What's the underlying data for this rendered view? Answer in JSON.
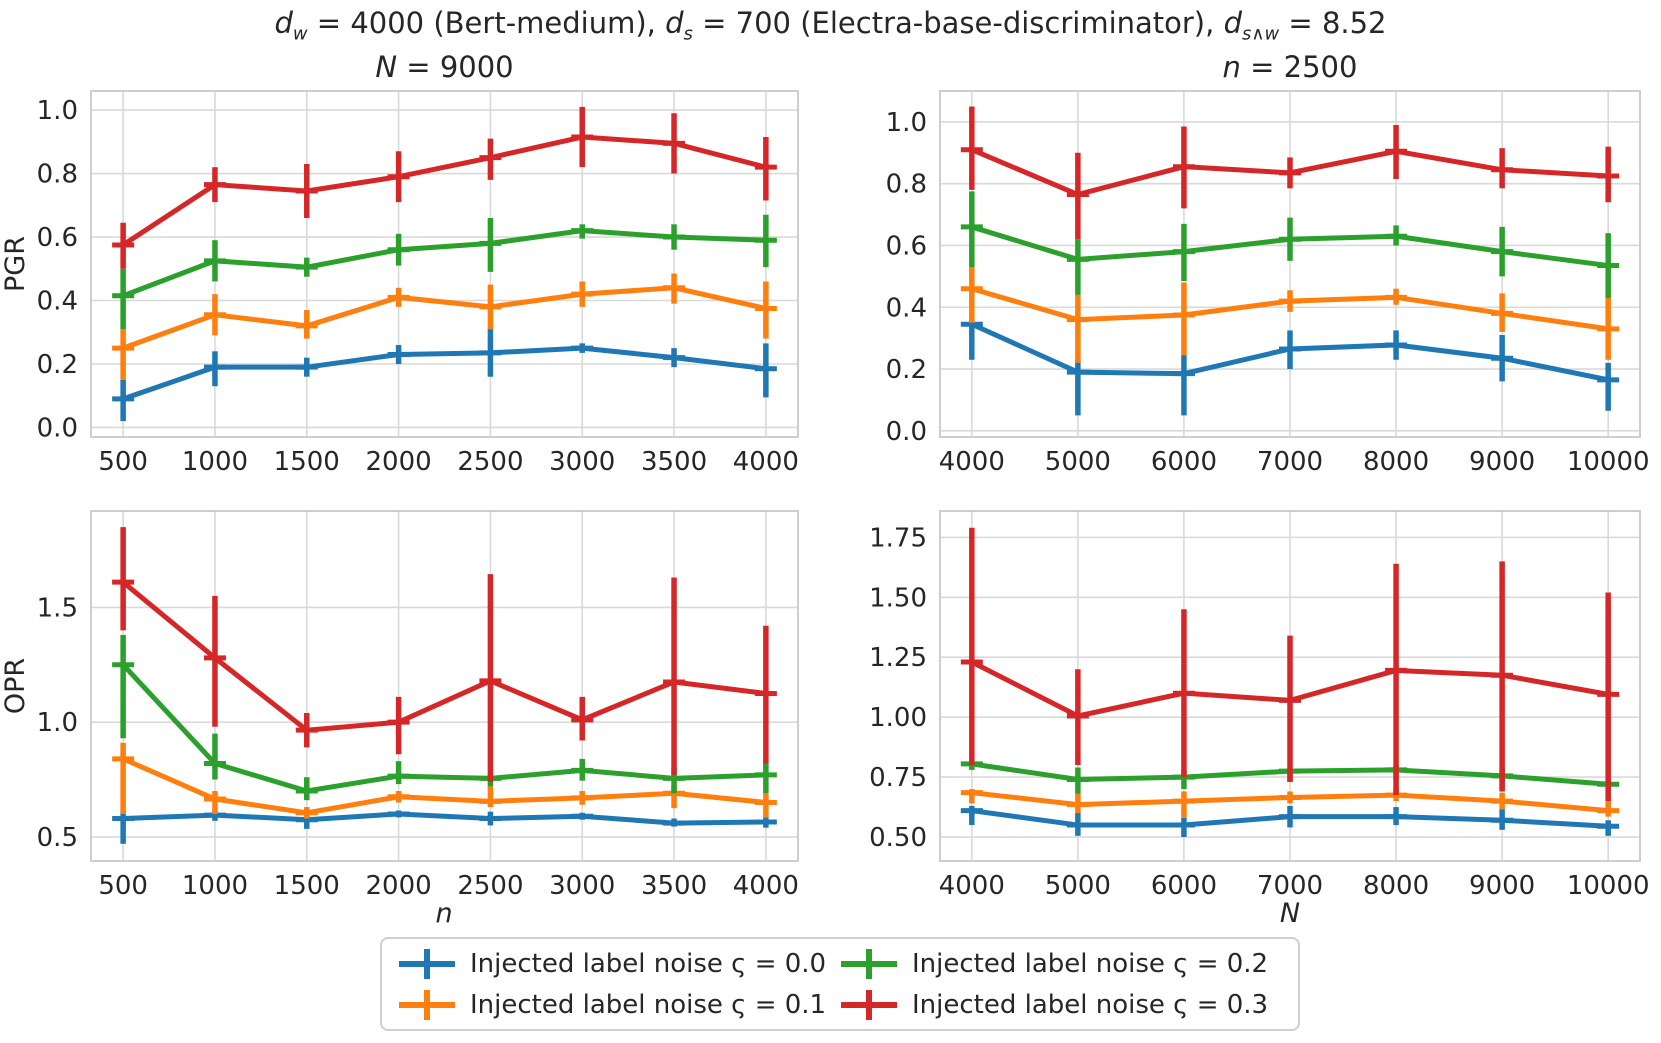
{
  "title": {
    "segments": [
      {
        "t": "d",
        "i": true
      },
      {
        "t": "w",
        "i": true,
        "sub": true
      },
      {
        "t": " = 4000 (Bert-medium), "
      },
      {
        "t": "d",
        "i": true
      },
      {
        "t": "s",
        "i": true,
        "sub": true
      },
      {
        "t": " = 700 (Electra-base-discriminator), "
      },
      {
        "t": "d",
        "i": true
      },
      {
        "t": "s∧w",
        "i": true,
        "sub": true
      },
      {
        "t": " = 8.52"
      }
    ]
  },
  "colors": {
    "blue": "#1f77b4",
    "orange": "#ff7f0e",
    "green": "#2ca02c",
    "red": "#d62728",
    "grid": "#d9d9d9",
    "spine": "#c9c9c9",
    "text": "#262626"
  },
  "legend": {
    "items": [
      {
        "color": "blue",
        "label": "Injected label noise ς = 0.0"
      },
      {
        "color": "orange",
        "label": "Injected label noise ς = 0.1"
      },
      {
        "color": "green",
        "label": "Injected label noise ς = 0.2"
      },
      {
        "color": "red",
        "label": "Injected label noise ς = 0.3"
      }
    ]
  },
  "chart_data": [
    {
      "id": "pgr-vs-n",
      "type": "line",
      "position": "top-left",
      "title_segments": [
        {
          "t": "N",
          "i": true
        },
        {
          "t": " = 9000"
        }
      ],
      "ylabel": "PGR",
      "xlabel": "",
      "x": [
        500,
        1000,
        1500,
        2000,
        2500,
        3000,
        3500,
        4000
      ],
      "xtick_labels": [
        "500",
        "1000",
        "1500",
        "2000",
        "2500",
        "3000",
        "3500",
        "4000"
      ],
      "ytick_values": [
        0.0,
        0.2,
        0.4,
        0.6,
        0.8,
        1.0
      ],
      "ytick_labels": [
        "0.0",
        "0.2",
        "0.4",
        "0.6",
        "0.8",
        "1.0"
      ],
      "xlim": [
        325,
        4175
      ],
      "ylim": [
        -0.03,
        1.06
      ],
      "grid": true,
      "series": [
        {
          "name": "ς = 0.0",
          "color": "blue",
          "y": [
            0.09,
            0.19,
            0.19,
            0.23,
            0.235,
            0.25,
            0.22,
            0.185
          ],
          "err_lo": [
            0.02,
            0.13,
            0.16,
            0.2,
            0.16,
            0.235,
            0.19,
            0.095
          ],
          "err_hi": [
            0.15,
            0.24,
            0.22,
            0.26,
            0.31,
            0.265,
            0.25,
            0.265
          ]
        },
        {
          "name": "ς = 0.1",
          "color": "orange",
          "y": [
            0.25,
            0.355,
            0.32,
            0.41,
            0.38,
            0.42,
            0.44,
            0.375
          ],
          "err_lo": [
            0.15,
            0.29,
            0.28,
            0.38,
            0.31,
            0.38,
            0.39,
            0.28
          ],
          "err_hi": [
            0.31,
            0.42,
            0.37,
            0.44,
            0.45,
            0.46,
            0.485,
            0.46
          ]
        },
        {
          "name": "ς = 0.2",
          "color": "green",
          "y": [
            0.415,
            0.525,
            0.505,
            0.56,
            0.58,
            0.62,
            0.6,
            0.59
          ],
          "err_lo": [
            0.31,
            0.46,
            0.475,
            0.51,
            0.49,
            0.595,
            0.56,
            0.505
          ],
          "err_hi": [
            0.5,
            0.59,
            0.535,
            0.61,
            0.66,
            0.64,
            0.64,
            0.67
          ]
        },
        {
          "name": "ς = 0.3",
          "color": "red",
          "y": [
            0.575,
            0.765,
            0.745,
            0.79,
            0.85,
            0.915,
            0.895,
            0.82
          ],
          "err_lo": [
            0.5,
            0.71,
            0.66,
            0.71,
            0.78,
            0.82,
            0.8,
            0.715
          ],
          "err_hi": [
            0.645,
            0.82,
            0.83,
            0.87,
            0.91,
            1.01,
            0.99,
            0.915
          ]
        }
      ]
    },
    {
      "id": "pgr-vs-N",
      "type": "line",
      "position": "top-right",
      "title_segments": [
        {
          "t": "n",
          "i": true
        },
        {
          "t": " = 2500"
        }
      ],
      "ylabel": "",
      "xlabel": "",
      "x": [
        4000,
        5000,
        6000,
        7000,
        8000,
        9000,
        10000
      ],
      "xtick_labels": [
        "4000",
        "5000",
        "6000",
        "7000",
        "8000",
        "9000",
        "10000"
      ],
      "ytick_values": [
        0.0,
        0.2,
        0.4,
        0.6,
        0.8,
        1.0
      ],
      "ytick_labels": [
        "0.0",
        "0.2",
        "0.4",
        "0.6",
        "0.8",
        "1.0"
      ],
      "xlim": [
        3700,
        10300
      ],
      "ylim": [
        -0.02,
        1.1
      ],
      "grid": true,
      "series": [
        {
          "name": "ς = 0.0",
          "color": "blue",
          "y": [
            0.345,
            0.19,
            0.185,
            0.265,
            0.278,
            0.235,
            0.165
          ],
          "err_lo": [
            0.23,
            0.05,
            0.05,
            0.2,
            0.23,
            0.16,
            0.065
          ],
          "err_hi": [
            0.36,
            0.23,
            0.245,
            0.325,
            0.325,
            0.31,
            0.22
          ]
        },
        {
          "name": "ς = 0.1",
          "color": "orange",
          "y": [
            0.46,
            0.36,
            0.375,
            0.42,
            0.432,
            0.38,
            0.33
          ],
          "err_lo": [
            0.35,
            0.22,
            0.245,
            0.385,
            0.408,
            0.32,
            0.23
          ],
          "err_hi": [
            0.53,
            0.44,
            0.48,
            0.455,
            0.46,
            0.445,
            0.43
          ]
        },
        {
          "name": "ς = 0.2",
          "color": "green",
          "y": [
            0.66,
            0.555,
            0.58,
            0.62,
            0.63,
            0.58,
            0.535
          ],
          "err_lo": [
            0.53,
            0.44,
            0.485,
            0.55,
            0.6,
            0.5,
            0.43
          ],
          "err_hi": [
            0.775,
            0.62,
            0.67,
            0.69,
            0.665,
            0.66,
            0.64
          ]
        },
        {
          "name": "ς = 0.3",
          "color": "red",
          "y": [
            0.91,
            0.765,
            0.855,
            0.835,
            0.905,
            0.845,
            0.825
          ],
          "err_lo": [
            0.78,
            0.62,
            0.72,
            0.785,
            0.815,
            0.785,
            0.74
          ],
          "err_hi": [
            1.05,
            0.9,
            0.985,
            0.885,
            0.99,
            0.915,
            0.92
          ]
        }
      ]
    },
    {
      "id": "opr-vs-n",
      "type": "line",
      "position": "bottom-left",
      "title_segments": [],
      "ylabel": "OPR",
      "xlabel": "n",
      "x": [
        500,
        1000,
        1500,
        2000,
        2500,
        3000,
        3500,
        4000
      ],
      "xtick_labels": [
        "500",
        "1000",
        "1500",
        "2000",
        "2500",
        "3000",
        "3500",
        "4000"
      ],
      "ytick_values": [
        0.5,
        1.0,
        1.5
      ],
      "ytick_labels": [
        "0.5",
        "1.0",
        "1.5"
      ],
      "xlim": [
        325,
        4175
      ],
      "ylim": [
        0.395,
        1.92
      ],
      "grid": true,
      "series": [
        {
          "name": "ς = 0.0",
          "color": "blue",
          "y": [
            0.58,
            0.595,
            0.575,
            0.6,
            0.58,
            0.59,
            0.56,
            0.565
          ],
          "err_lo": [
            0.47,
            0.57,
            0.535,
            0.585,
            0.55,
            0.575,
            0.545,
            0.54
          ],
          "err_hi": [
            0.61,
            0.615,
            0.6,
            0.615,
            0.61,
            0.605,
            0.58,
            0.585
          ]
        },
        {
          "name": "ς = 0.1",
          "color": "orange",
          "y": [
            0.84,
            0.665,
            0.605,
            0.675,
            0.655,
            0.67,
            0.69,
            0.65
          ],
          "err_lo": [
            0.6,
            0.6,
            0.58,
            0.65,
            0.63,
            0.64,
            0.625,
            0.585
          ],
          "err_hi": [
            0.91,
            0.7,
            0.63,
            0.7,
            0.72,
            0.7,
            0.725,
            0.69
          ]
        },
        {
          "name": "ς = 0.2",
          "color": "green",
          "y": [
            1.25,
            0.82,
            0.7,
            0.765,
            0.755,
            0.79,
            0.755,
            0.77
          ],
          "err_lo": [
            0.93,
            0.75,
            0.66,
            0.73,
            0.72,
            0.745,
            0.69,
            0.69
          ],
          "err_hi": [
            1.38,
            0.95,
            0.76,
            0.83,
            0.775,
            0.84,
            0.8,
            0.825
          ]
        },
        {
          "name": "ς = 0.3",
          "color": "red",
          "y": [
            1.61,
            1.28,
            0.965,
            1.0,
            1.18,
            1.01,
            1.175,
            1.125
          ],
          "err_lo": [
            1.4,
            0.98,
            0.89,
            0.86,
            0.74,
            0.92,
            0.77,
            0.82
          ],
          "err_hi": [
            1.85,
            1.55,
            1.04,
            1.11,
            1.645,
            1.11,
            1.63,
            1.42
          ]
        }
      ]
    },
    {
      "id": "opr-vs-N",
      "type": "line",
      "position": "bottom-right",
      "title_segments": [],
      "ylabel": "",
      "xlabel": "N",
      "x": [
        4000,
        5000,
        6000,
        7000,
        8000,
        9000,
        10000
      ],
      "xtick_labels": [
        "4000",
        "5000",
        "6000",
        "7000",
        "8000",
        "9000",
        "10000"
      ],
      "ytick_values": [
        0.5,
        0.75,
        1.0,
        1.25,
        1.5,
        1.75
      ],
      "ytick_labels": [
        "0.50",
        "0.75",
        "1.00",
        "1.25",
        "1.50",
        "1.75"
      ],
      "xlim": [
        3700,
        10300
      ],
      "ylim": [
        0.4,
        1.86
      ],
      "grid": true,
      "series": [
        {
          "name": "ς = 0.0",
          "color": "blue",
          "y": [
            0.61,
            0.55,
            0.55,
            0.585,
            0.585,
            0.57,
            0.545
          ],
          "err_lo": [
            0.55,
            0.505,
            0.5,
            0.54,
            0.55,
            0.53,
            0.505
          ],
          "err_hi": [
            0.63,
            0.6,
            0.58,
            0.63,
            0.625,
            0.615,
            0.57
          ]
        },
        {
          "name": "ς = 0.1",
          "color": "orange",
          "y": [
            0.685,
            0.635,
            0.65,
            0.665,
            0.675,
            0.65,
            0.61
          ],
          "err_lo": [
            0.64,
            0.6,
            0.58,
            0.64,
            0.65,
            0.615,
            0.585
          ],
          "err_hi": [
            0.7,
            0.68,
            0.69,
            0.69,
            0.705,
            0.685,
            0.65
          ]
        },
        {
          "name": "ς = 0.2",
          "color": "green",
          "y": [
            0.805,
            0.74,
            0.75,
            0.775,
            0.78,
            0.755,
            0.72
          ],
          "err_lo": [
            0.78,
            0.68,
            0.7,
            0.73,
            0.74,
            0.7,
            0.695
          ],
          "err_hi": [
            0.82,
            0.79,
            0.78,
            0.79,
            0.8,
            0.79,
            0.745
          ]
        },
        {
          "name": "ς = 0.3",
          "color": "red",
          "y": [
            1.23,
            1.005,
            1.1,
            1.07,
            1.195,
            1.175,
            1.095
          ],
          "err_lo": [
            0.8,
            0.8,
            0.75,
            0.73,
            0.675,
            0.69,
            0.65
          ],
          "err_hi": [
            1.79,
            1.2,
            1.45,
            1.34,
            1.64,
            1.65,
            1.52
          ]
        }
      ]
    }
  ]
}
